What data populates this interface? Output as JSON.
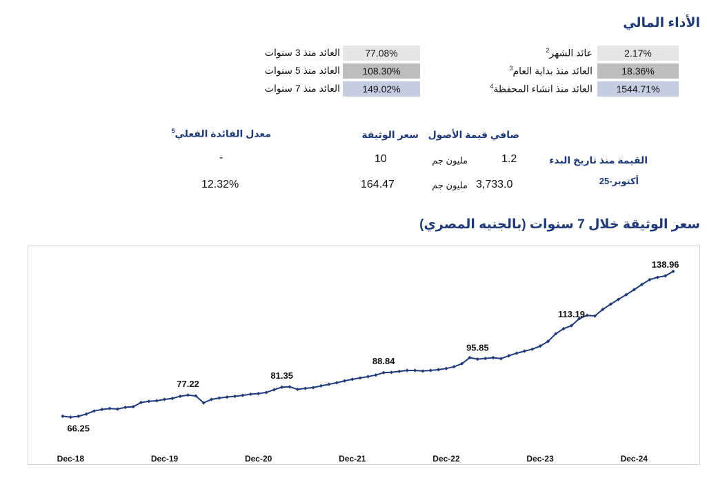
{
  "performance": {
    "title": "الأداء المالي",
    "right_rows": [
      {
        "label": "عائد الشهر",
        "sup": "2",
        "value": "2.17%",
        "shade": "light"
      },
      {
        "label": "العائد منذ بداية العام",
        "sup": "3",
        "value": "18.36%",
        "shade": "mid"
      },
      {
        "label": "العائد منذ انشاء المحفظة",
        "sup": "4",
        "value": "1544.71%",
        "shade": "blue"
      }
    ],
    "left_rows": [
      {
        "label": "العائد منذ 3 سنوات",
        "value": "77.08%",
        "shade": "light"
      },
      {
        "label": "العائد منذ 5 سنوات",
        "value": "108.30%",
        "shade": "mid"
      },
      {
        "label": "العائد منذ 7 سنوات",
        "value": "149.02%",
        "shade": "blue"
      }
    ]
  },
  "fund_table": {
    "headers": {
      "nav": "صافي قيمة الأصول",
      "price": "سعر الوثيقة",
      "rate": "معدل الفائدة الفعلي",
      "rate_sup": "5"
    },
    "row_labels": {
      "inception": "القيمة منذ تاريخ البدء",
      "current": "أكتوبر-25"
    },
    "inception": {
      "nav": "1.2",
      "nav_unit": "مليون جم",
      "price": "10",
      "rate": "-"
    },
    "current": {
      "nav": "3,733.0",
      "nav_unit": "مليون جم",
      "price": "164.47",
      "rate": "12.32%"
    }
  },
  "chart_section_title": "سعر الوثيقة خلال 7 سنوات (بالجنيه المصري)",
  "chart_data": {
    "type": "line",
    "series_color": "#1f3a7a",
    "x_tick_labels": [
      "Dec-18",
      "Dec-19",
      "Dec-20",
      "Dec-21",
      "Dec-22",
      "Dec-23",
      "Dec-24"
    ],
    "x_start": "Nov-18",
    "x_end": "Oct-25",
    "ylim": [
      50,
      150
    ],
    "grid": false,
    "values": [
      66.3,
      65.8,
      66.25,
      67.4,
      69.0,
      69.8,
      70.3,
      70.0,
      70.9,
      71.2,
      73.4,
      74.0,
      74.3,
      75.0,
      75.5,
      76.6,
      77.22,
      76.8,
      73.2,
      75.0,
      75.7,
      76.2,
      76.6,
      77.1,
      77.7,
      78.0,
      78.6,
      80.0,
      81.35,
      81.5,
      80.2,
      80.7,
      81.1,
      82.0,
      82.8,
      83.6,
      84.6,
      85.4,
      86.1,
      86.8,
      87.6,
      88.84,
      89.0,
      89.5,
      90.0,
      90.0,
      89.7,
      90.0,
      90.4,
      91.0,
      91.9,
      93.5,
      96.6,
      95.85,
      96.2,
      96.6,
      96.1,
      97.6,
      98.9,
      100.0,
      101.0,
      102.6,
      105.0,
      109.0,
      111.6,
      113.19,
      116.8,
      118.5,
      118.2,
      121.6,
      124.3,
      126.8,
      129.2,
      131.8,
      134.5,
      137.0,
      138.2,
      138.96,
      141.3
    ],
    "annotations": [
      {
        "index": 2,
        "label": "66.25",
        "pos": "below"
      },
      {
        "index": 16,
        "label": "77.22",
        "pos": "above"
      },
      {
        "index": 28,
        "label": "81.35",
        "pos": "above"
      },
      {
        "index": 41,
        "label": "88.84",
        "pos": "above"
      },
      {
        "index": 53,
        "label": "95.85",
        "pos": "above"
      },
      {
        "index": 65,
        "label": "113.19",
        "pos": "above"
      },
      {
        "index": 77,
        "label": "138.96",
        "pos": "above"
      }
    ]
  }
}
